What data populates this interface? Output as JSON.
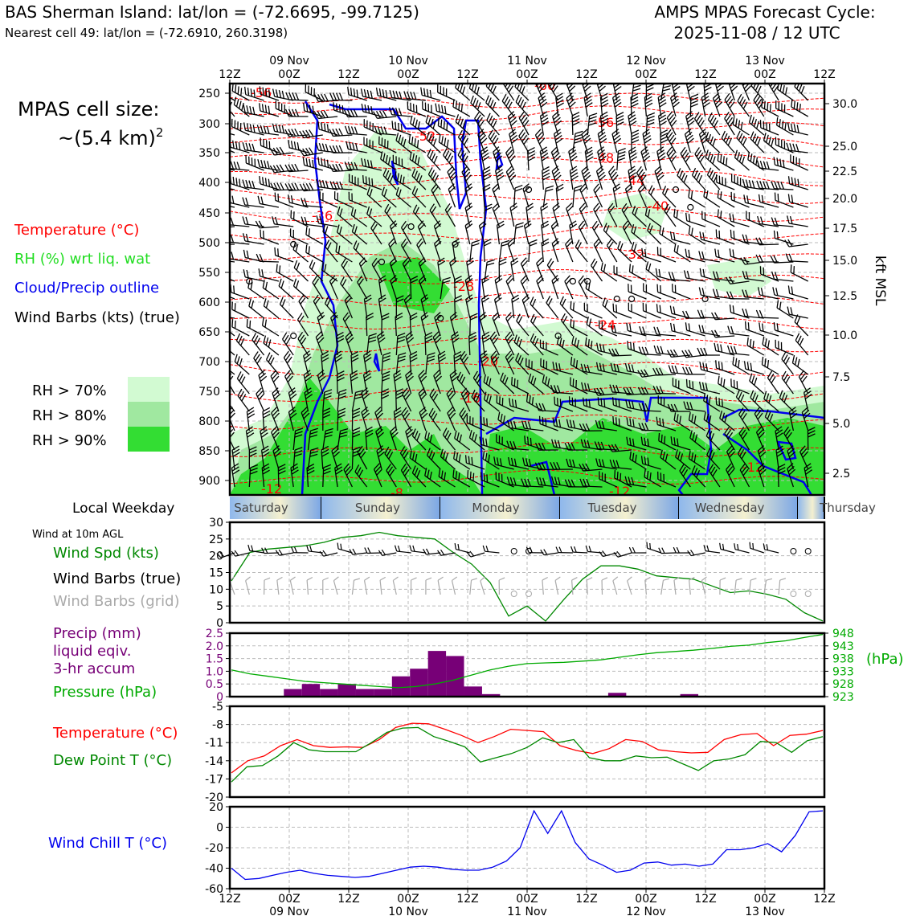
{
  "header": {
    "site": "BAS Sherman Island: lat/lon = (-72.6695, -99.7125)",
    "cell": "Nearest cell 49: lat/lon = (-72.6910, 260.3198)",
    "product": "AMPS MPAS Forecast Cycle:",
    "cycle": "2025-11-08 / 12 UTC"
  },
  "left_panel": {
    "cell_size_title": "MPAS cell size:",
    "cell_size_value": "~(5.4 km)",
    "cell_size_exp": "2",
    "legend_temperature": "Temperature (°C)",
    "legend_rh": "RH (%) wrt liq. wat",
    "legend_cloud": "Cloud/Precip outline",
    "legend_wind": "Wind Barbs (kts) (true)",
    "rh_bins": [
      {
        "label": "RH > 70%",
        "color": "#d2fad2"
      },
      {
        "label": "RH > 80%",
        "color": "#a0e8a0"
      },
      {
        "label": "RH > 90%",
        "color": "#33dd33"
      }
    ],
    "local_weekday_label": "Local Weekday",
    "wind10m_label": "Wind at 10m AGL",
    "wind_spd_label": "Wind Spd (kts)",
    "wind_barbs_true_label": "Wind Barbs (true)",
    "wind_barbs_grid_label": "Wind Barbs (grid)",
    "precip_label_1": "Precip (mm)",
    "precip_label_2": "liquid eqiv.",
    "precip_label_3": "3-hr accum",
    "pressure_label": "Pressure (hPa)",
    "temp_label": "Temperature (°C)",
    "dew_label": "Dew Point T (°C)",
    "windchill_label": "Wind Chill T (°C)",
    "hpa_unit": "(hPa)",
    "kft_label": "kft MSL"
  },
  "colors": {
    "temperature": "#ff0000",
    "rh": "#22cc22",
    "cloud": "#0000ee",
    "wind_speed": "#008800",
    "grid_barb": "#aaaaaa",
    "precip": "#770077",
    "pressure": "#00aa00",
    "windchill": "#0000ee",
    "dewpoint": "#008800"
  },
  "time_axis": {
    "top_days": [
      "09 Nov",
      "10 Nov",
      "11 Nov",
      "12 Nov",
      "13 Nov"
    ],
    "hour_ticks": [
      "12Z",
      "00Z",
      "12Z",
      "00Z",
      "12Z",
      "00Z",
      "12Z",
      "00Z",
      "12Z",
      "00Z",
      "12Z"
    ],
    "weekdays": [
      "Saturday",
      "Sunday",
      "Monday",
      "Tuesday",
      "Wednesday",
      "Thursday"
    ]
  },
  "chart_data": [
    {
      "type": "heatmap",
      "name": "cross-section",
      "yaxis_left_hpa": [
        "250",
        "300",
        "350",
        "400",
        "450",
        "500",
        "550",
        "600",
        "650",
        "700",
        "750",
        "800",
        "850",
        "900"
      ],
      "yaxis_right_kft": [
        "30.0",
        "25.0",
        "22.5",
        "20.0",
        "17.5",
        "15.0",
        "12.5",
        "10.0",
        "7.5",
        "5.0",
        "2.5"
      ],
      "temperature_contour_labels": [
        "-56",
        "-60",
        "-56",
        "-52",
        "-48",
        "-44",
        "-40",
        "-36",
        "-32",
        "-28",
        "-24",
        "-20",
        "-16",
        "-12",
        "-12",
        "-12",
        "-8"
      ]
    },
    {
      "type": "line",
      "name": "wind-speed",
      "y_ticks": [
        "0",
        "5",
        "10",
        "15",
        "20",
        "25",
        "30"
      ],
      "ylim": [
        0,
        30
      ],
      "values": [
        12.5,
        21,
        22,
        22.5,
        23,
        24,
        25.5,
        26,
        27,
        26,
        25.5,
        25,
        21,
        17.5,
        12,
        2,
        5,
        0.5,
        7,
        13,
        17,
        17,
        16,
        14,
        13.5,
        13,
        11,
        9,
        9.5,
        8.5,
        7,
        3,
        0.5
      ]
    },
    {
      "type": "bar",
      "name": "precipitation",
      "y_ticks": [
        "0",
        "0.5",
        "1.0",
        "1.5",
        "2.0",
        "2.5"
      ],
      "ylim": [
        0,
        2.5
      ],
      "values": [
        0,
        0,
        0,
        0.3,
        0.5,
        0.3,
        0.5,
        0.3,
        0.3,
        0.8,
        1.1,
        1.8,
        1.6,
        0.4,
        0.1,
        0,
        0,
        0,
        0,
        0,
        0,
        0.15,
        0,
        0,
        0,
        0.1,
        0,
        0,
        0,
        0,
        0,
        0,
        0
      ],
      "pressure_ticks": [
        "923",
        "928",
        "933",
        "938",
        "943",
        "948"
      ],
      "pressure_lim": [
        923,
        948
      ],
      "pressure_values": [
        933.5,
        932,
        931,
        930,
        929,
        928.5,
        928,
        927.5,
        927,
        926.5,
        927,
        928,
        929.5,
        931.5,
        933.5,
        935,
        936,
        936.3,
        936.5,
        937,
        937.5,
        938.5,
        939.5,
        940.3,
        940.8,
        941.3,
        942,
        942.8,
        943.3,
        944.3,
        945,
        946.3,
        947.5
      ]
    },
    {
      "type": "line",
      "name": "temperature",
      "y_ticks": [
        "-5",
        "-8",
        "-11",
        "-14",
        "-17",
        "-20"
      ],
      "ylim": [
        -20,
        -5
      ],
      "series": [
        {
          "name": "Temperature (°C)",
          "values": [
            -16,
            -14,
            -13.2,
            -11.5,
            -10.5,
            -11.5,
            -11.8,
            -11.7,
            -11.8,
            -10.5,
            -8.5,
            -7.8,
            -7.9,
            -8.8,
            -9.8,
            -11,
            -10,
            -8.8,
            -9,
            -9.2,
            -11.5,
            -12.3,
            -12.8,
            -12,
            -10.5,
            -10.8,
            -12.2,
            -12.5,
            -12.7,
            -12.6,
            -10.5,
            -9.7,
            -9.5,
            -11.5,
            -9.8,
            -9.6,
            -9
          ]
        },
        {
          "name": "Dew Point T (°C)",
          "values": [
            -17.5,
            -15,
            -14.8,
            -13.2,
            -11,
            -12.2,
            -12.5,
            -12.5,
            -12.5,
            -11,
            -9.3,
            -8.6,
            -8.5,
            -10,
            -10.8,
            -11.7,
            -14.2,
            -13.5,
            -12.8,
            -11.8,
            -10.2,
            -11,
            -10.5,
            -13.5,
            -14,
            -14,
            -13.2,
            -13.5,
            -13.4,
            -14.5,
            -15.6,
            -14,
            -13.7,
            -13,
            -10.8,
            -11,
            -12.6,
            -10.7,
            -10
          ]
        }
      ]
    },
    {
      "type": "line",
      "name": "wind-chill",
      "y_ticks": [
        "20",
        "0",
        "-20",
        "-40",
        "-60"
      ],
      "ylim": [
        -60,
        20
      ],
      "values": [
        -40,
        -51,
        -50,
        -47,
        -44,
        -42,
        -45,
        -47,
        -48,
        -49,
        -48,
        -45,
        -42,
        -39,
        -38,
        -39,
        -41,
        -42,
        -42,
        -39,
        -33,
        -20,
        16,
        -6,
        16,
        -15,
        -31,
        -37,
        -44,
        -42,
        -35,
        -34,
        -37,
        -36,
        -38,
        -36,
        -22,
        -22,
        -20,
        -16,
        -24,
        -8,
        15,
        16
      ]
    }
  ]
}
